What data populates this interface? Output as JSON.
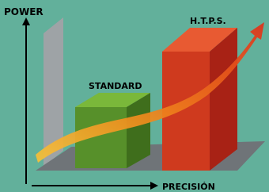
{
  "labels": {
    "power": "POWER",
    "precision": "PRECISIÓN",
    "standard": "STANDARD",
    "htps": "H.T.P.S."
  }
}
